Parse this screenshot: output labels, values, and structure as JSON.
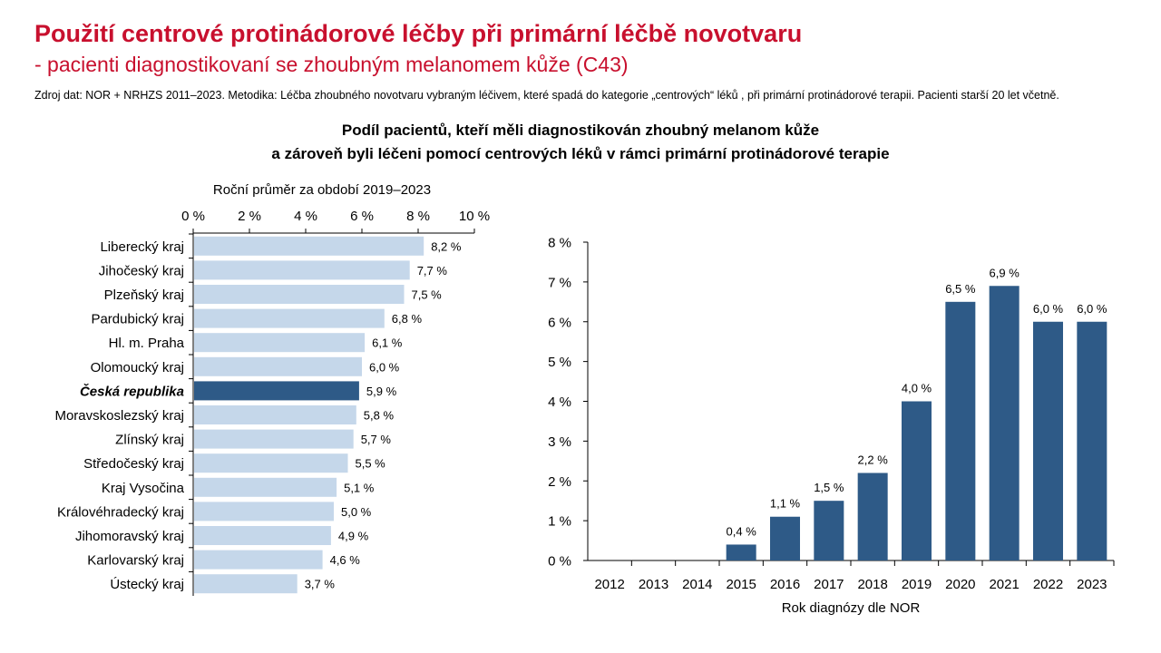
{
  "header": {
    "title": "Použití centrové protinádorové léčby při primární léčbě novotvaru",
    "subtitle": "- pacienti diagnostikovaní se zhoubným melanomem kůže (C43)",
    "source": "Zdroj dat: NOR + NRHZS 2011–2023. Metodika: Léčba zhoubného novotvaru vybraným léčivem, které spadá do kategorie „centrových“ léků , při primární protinádorové terapii. Pacienti starší 20 let včetně."
  },
  "main_title": {
    "line1": "Podíl pacientů, kteří měli diagnostikován zhoubný melanom kůže",
    "line2": "a zároveň byli léčeni pomocí centrových léků v rámci primární protinádorové terapie"
  },
  "colors": {
    "accent": "#c8102e",
    "light_bar": "#c5d7ea",
    "dark_bar": "#2e5a87"
  },
  "chart_data": [
    {
      "type": "bar",
      "orientation": "horizontal",
      "title": "Roční průměr za období 2019–2023",
      "categories": [
        "Liberecký kraj",
        "Jihočeský kraj",
        "Plzeňský kraj",
        "Pardubický kraj",
        "Hl. m. Praha",
        "Olomoucký kraj",
        "Česká republika",
        "Moravskoslezský kraj",
        "Zlínský kraj",
        "Středočeský kraj",
        "Kraj Vysočina",
        "Královéhradecký kraj",
        "Jihomoravský kraj",
        "Karlovarský kraj",
        "Ústecký kraj"
      ],
      "values": [
        8.2,
        7.7,
        7.5,
        6.8,
        6.1,
        6.0,
        5.9,
        5.8,
        5.7,
        5.5,
        5.1,
        5.0,
        4.9,
        4.6,
        3.7
      ],
      "value_labels": [
        "8,2 %",
        "7,7 %",
        "7,5 %",
        "6,8 %",
        "6,1 %",
        "6,0 %",
        "5,9 %",
        "5,8 %",
        "5,7 %",
        "5,5 %",
        "5,1 %",
        "5,0 %",
        "4,9 %",
        "4,6 %",
        "3,7 %"
      ],
      "highlight": "Česká republika",
      "xlim": [
        0,
        10
      ],
      "ticks": [
        0,
        2,
        4,
        6,
        8,
        10
      ],
      "tick_labels": [
        "0 %",
        "2 %",
        "4 %",
        "6 %",
        "8 %",
        "10 %"
      ],
      "axis_position": "top",
      "grid": false
    },
    {
      "type": "bar",
      "orientation": "vertical",
      "xlabel": "Rok diagnózy dle NOR",
      "categories": [
        "2012",
        "2013",
        "2014",
        "2015",
        "2016",
        "2017",
        "2018",
        "2019",
        "2020",
        "2021",
        "2022",
        "2023"
      ],
      "values": [
        0,
        0,
        0,
        0.4,
        1.1,
        1.5,
        2.2,
        4.0,
        6.5,
        6.9,
        6.0,
        6.0
      ],
      "value_labels": [
        "",
        "",
        "",
        "0,4 %",
        "1,1 %",
        "1,5 %",
        "2,2 %",
        "4,0 %",
        "6,5 %",
        "6,9 %",
        "6,0 %",
        "6,0 %"
      ],
      "ylim": [
        0,
        8
      ],
      "ticks": [
        0,
        1,
        2,
        3,
        4,
        5,
        6,
        7,
        8
      ],
      "tick_labels": [
        "0 %",
        "1 %",
        "2 %",
        "3 %",
        "4 %",
        "5 %",
        "6 %",
        "7 %",
        "8 %"
      ],
      "grid": false
    }
  ]
}
